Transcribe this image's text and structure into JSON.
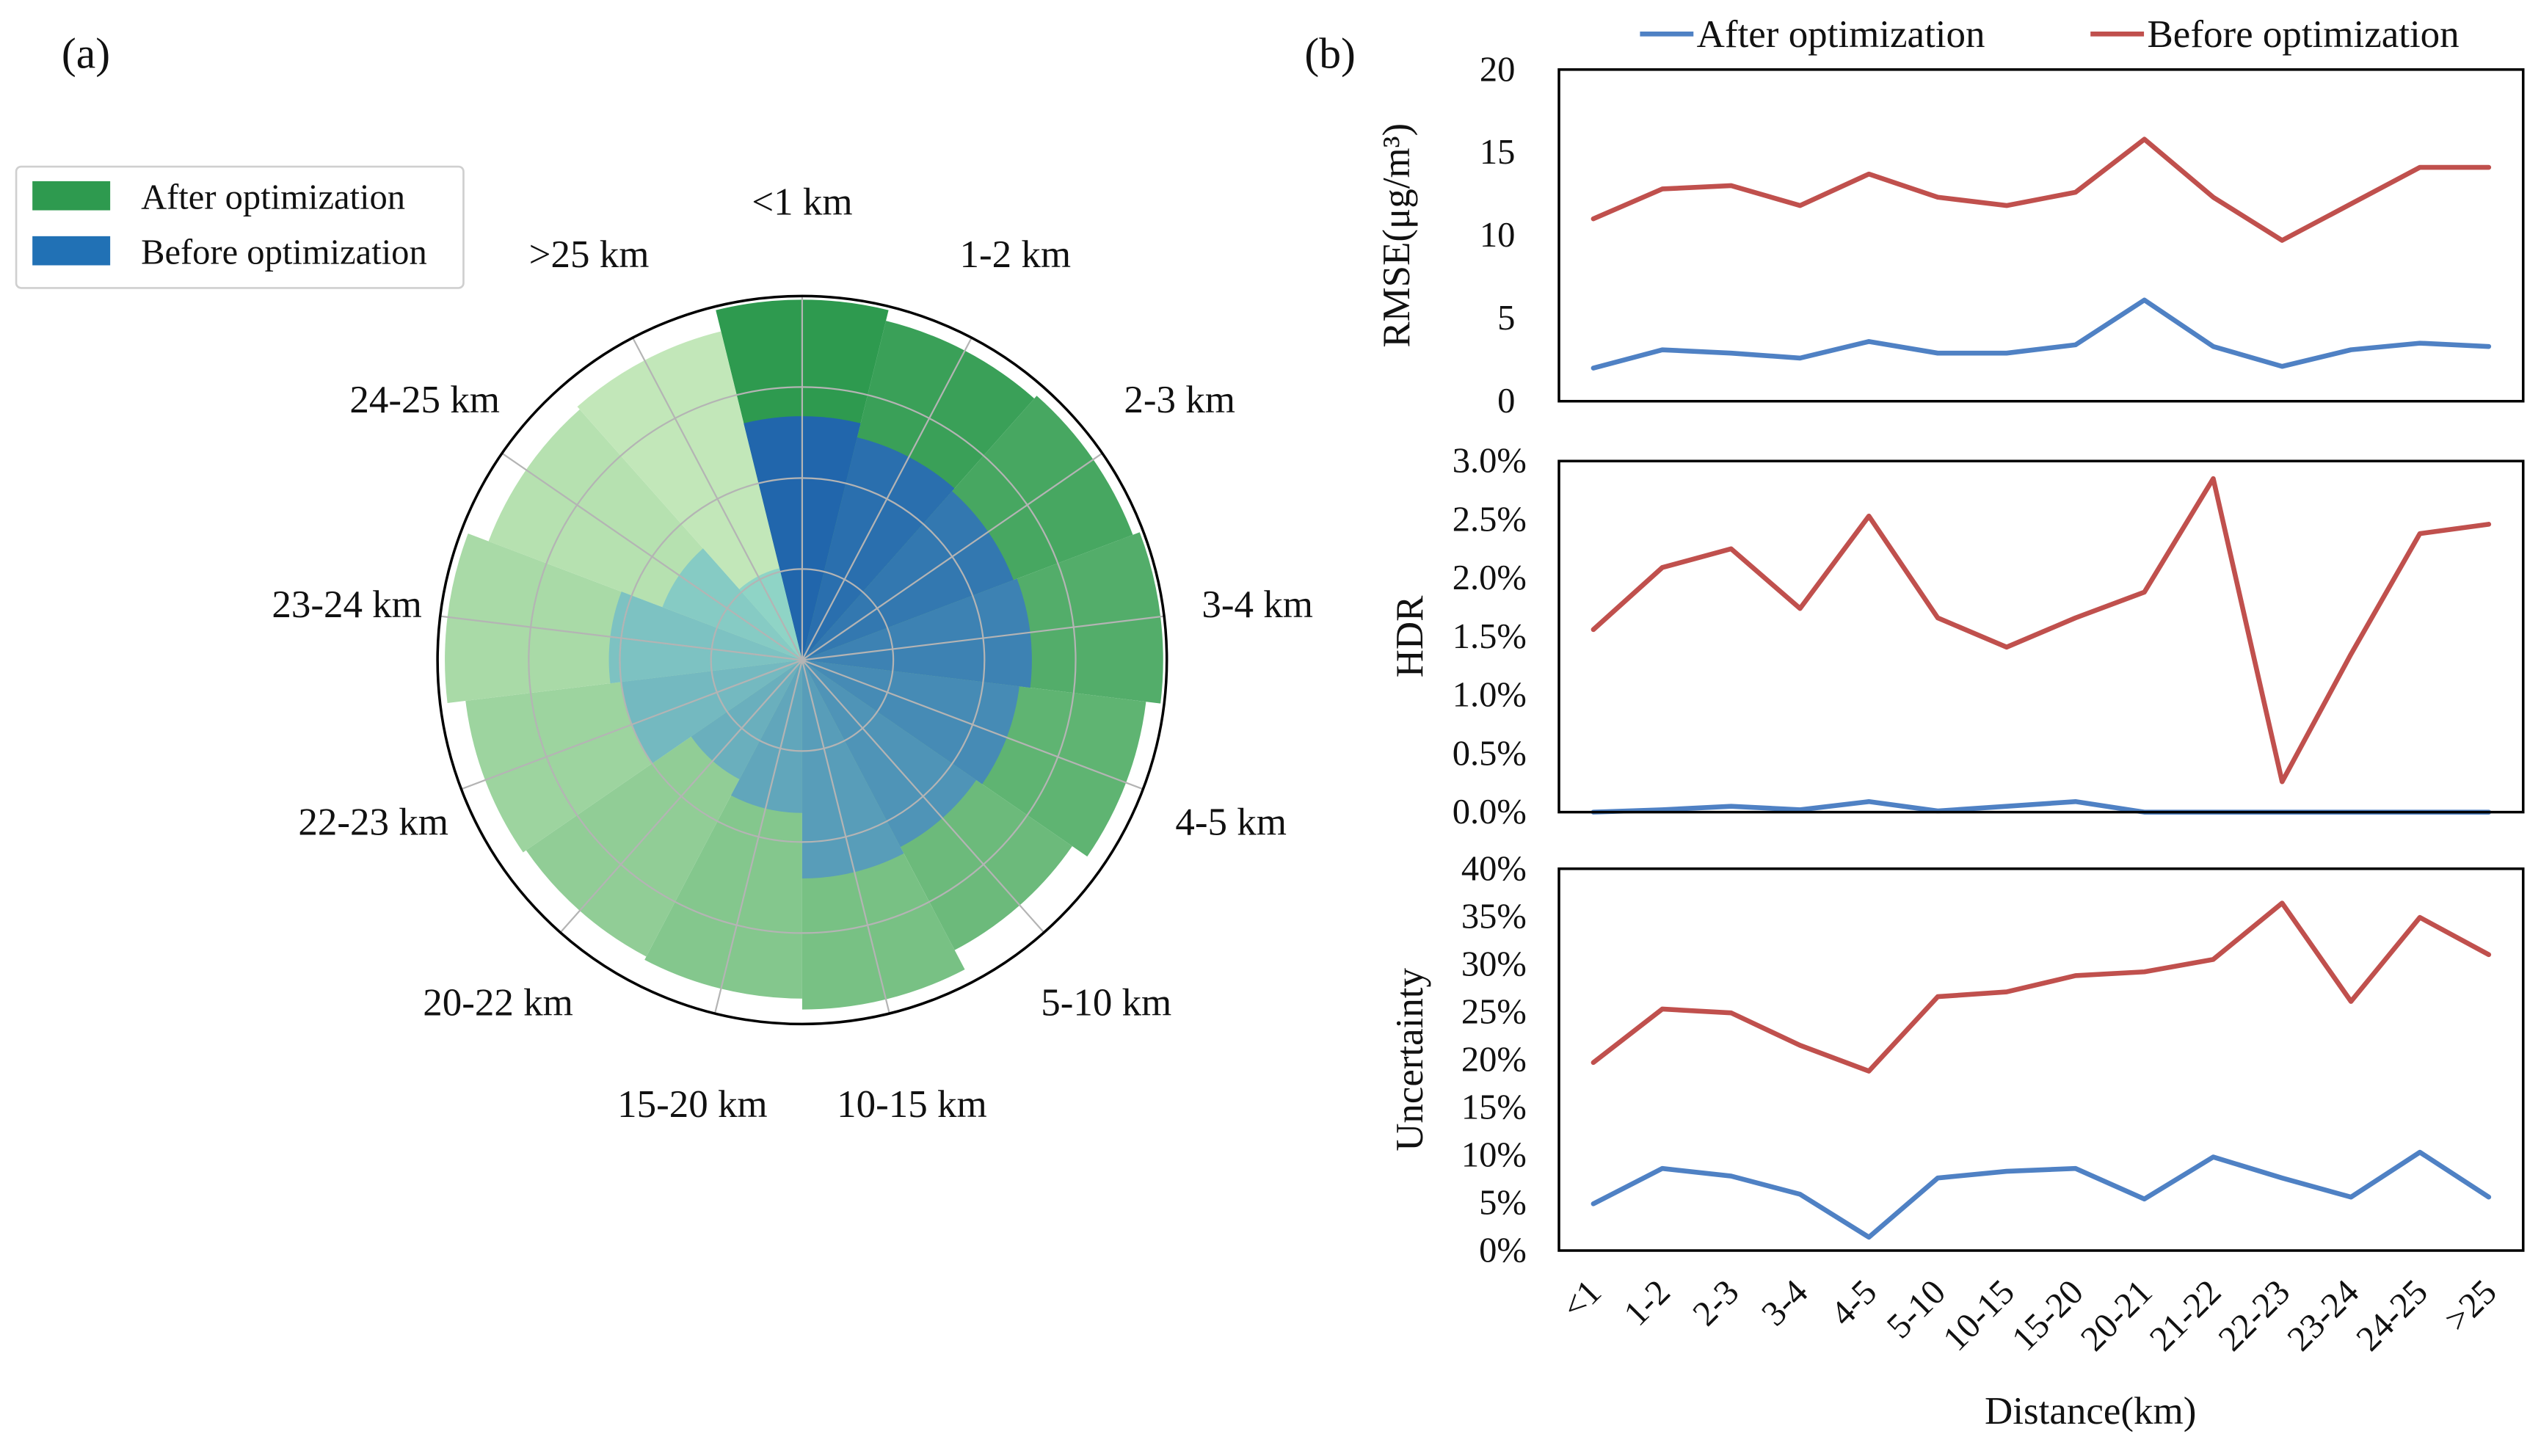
{
  "panel_labels": {
    "a": "(a)",
    "b": "(b)"
  },
  "chart_data": [
    {
      "type": "bar",
      "coordinates": "polar",
      "categories": [
        "<1 km",
        "1-2 km",
        "2-3 km",
        "3-4 km",
        "4-5 km",
        "5-10 km",
        "10-15 km",
        "15-20 km",
        "20-22 km",
        "22-23 km",
        "23-24 km",
        "24-25 km",
        ">25 km"
      ],
      "series": [
        {
          "name": "After optimization",
          "color": "#2e9a4f",
          "color_ramp": [
            "#2e9a4f",
            "#c2e7b9"
          ],
          "values": [
            0.99,
            0.96,
            0.97,
            0.99,
            0.95,
            0.9,
            0.96,
            0.93,
            0.92,
            0.93,
            0.98,
            0.92,
            0.93
          ]
        },
        {
          "name": "Before optimization",
          "color": "#2171b5",
          "color_ramp": [
            "#2166ac",
            "#8fd4c6"
          ],
          "values": [
            0.67,
            0.63,
            0.62,
            0.63,
            0.6,
            0.58,
            0.6,
            0.42,
            0.37,
            0.5,
            0.53,
            0.41,
            0.26
          ]
        }
      ],
      "rlim": [
        0,
        1
      ],
      "radial_grid": true,
      "legend": "top-left"
    },
    {
      "type": "line",
      "categories": [
        "<1",
        "1-2",
        "2-3",
        "3-4",
        "4-5",
        "5-10",
        "10-15",
        "15-20",
        "20-21",
        "21-22",
        "22-23",
        "23-24",
        "24-25",
        ">25"
      ],
      "xlabel": "Distance(km)",
      "legend": "top",
      "grid": false,
      "series": [
        {
          "name": "After optimization",
          "color": "#4f81c4"
        },
        {
          "name": "Before optimization",
          "color": "#c0504d"
        }
      ],
      "subplots": [
        {
          "ylabel": "RMSE(μg/m³)",
          "ylim": [
            0,
            20
          ],
          "yticks": [
            "0",
            "5",
            "10",
            "15",
            "20"
          ],
          "y": [
            [
              2.0,
              3.1,
              2.9,
              2.6,
              3.6,
              2.9,
              2.9,
              3.4,
              6.1,
              3.3,
              2.1,
              3.1,
              3.5,
              3.3
            ],
            [
              11.0,
              12.8,
              13.0,
              11.8,
              13.7,
              12.3,
              11.8,
              12.6,
              15.8,
              12.3,
              9.7,
              11.9,
              14.1,
              14.1
            ]
          ]
        },
        {
          "ylabel": "HDR",
          "ylim": [
            0,
            3.0
          ],
          "yticks": [
            "0.0%",
            "0.5%",
            "1.0%",
            "1.5%",
            "2.0%",
            "2.5%",
            "3.0%"
          ],
          "y": [
            [
              0.0,
              0.02,
              0.05,
              0.02,
              0.09,
              0.01,
              0.05,
              0.09,
              0.0,
              0.0,
              0.0,
              0.0,
              0.0,
              0.0
            ],
            [
              1.56,
              2.09,
              2.25,
              1.74,
              2.53,
              1.66,
              1.41,
              1.66,
              1.88,
              2.85,
              0.26,
              1.35,
              2.38,
              2.46
            ]
          ]
        },
        {
          "ylabel": "Uncertainty",
          "ylim": [
            0,
            40
          ],
          "yticks": [
            "0%",
            "5%",
            "10%",
            "15%",
            "20%",
            "25%",
            "30%",
            "35%",
            "40%"
          ],
          "y": [
            [
              4.9,
              8.6,
              7.8,
              5.9,
              1.4,
              7.6,
              8.3,
              8.6,
              5.4,
              9.8,
              7.6,
              5.6,
              10.3,
              5.6
            ],
            [
              19.7,
              25.3,
              24.9,
              21.5,
              18.8,
              26.6,
              27.1,
              28.8,
              29.2,
              30.5,
              36.4,
              26.1,
              34.9,
              31.0
            ]
          ]
        }
      ]
    }
  ]
}
